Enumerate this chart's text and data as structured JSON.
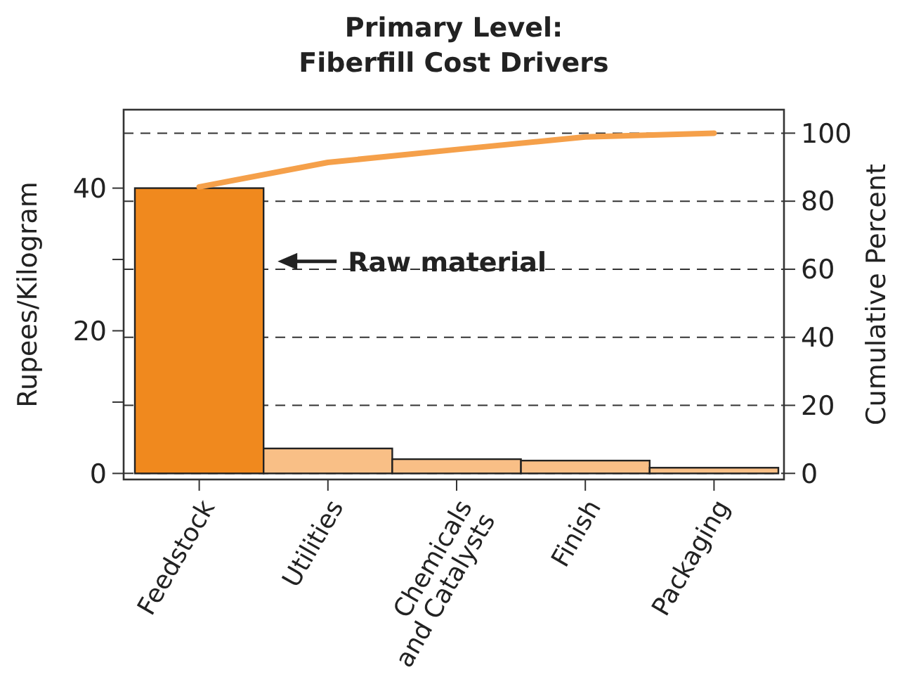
{
  "chart_data": {
    "type": "bar",
    "title": "Primary Level:\nFiberfill Cost Drivers",
    "ylabel": "Rupees/Kilogram",
    "y2label": "Cumulative Percent",
    "categories": [
      "Feedstock",
      "Utilities",
      "Chemicals\nand Catalysts",
      "Finish",
      "Packaging"
    ],
    "series": [
      {
        "colors": [
          "#f0891e",
          "#f9bf86",
          "#f9bf86",
          "#f9bf86",
          "#f9bf86"
        ],
        "values": [
          40,
          3.5,
          2,
          1.8,
          0.8
        ]
      },
      {
        "type": "line",
        "axis": "y2",
        "color": "#f5a04a",
        "values": [
          84.2,
          91.4,
          95.2,
          98.9,
          100
        ]
      }
    ],
    "ylim": [
      -0.85,
      51
    ],
    "yticks": [
      0,
      {
        "value": 10,
        "label": null
      },
      20,
      {
        "value": 30,
        "label": null
      },
      40
    ],
    "y2lim": [
      -1.8,
      106.9
    ],
    "y2ticks": [
      0,
      20,
      40,
      60,
      80,
      100
    ],
    "grid": "y2",
    "marker": "none",
    "line_style": "solid",
    "annotations": [
      "Raw material"
    ]
  }
}
